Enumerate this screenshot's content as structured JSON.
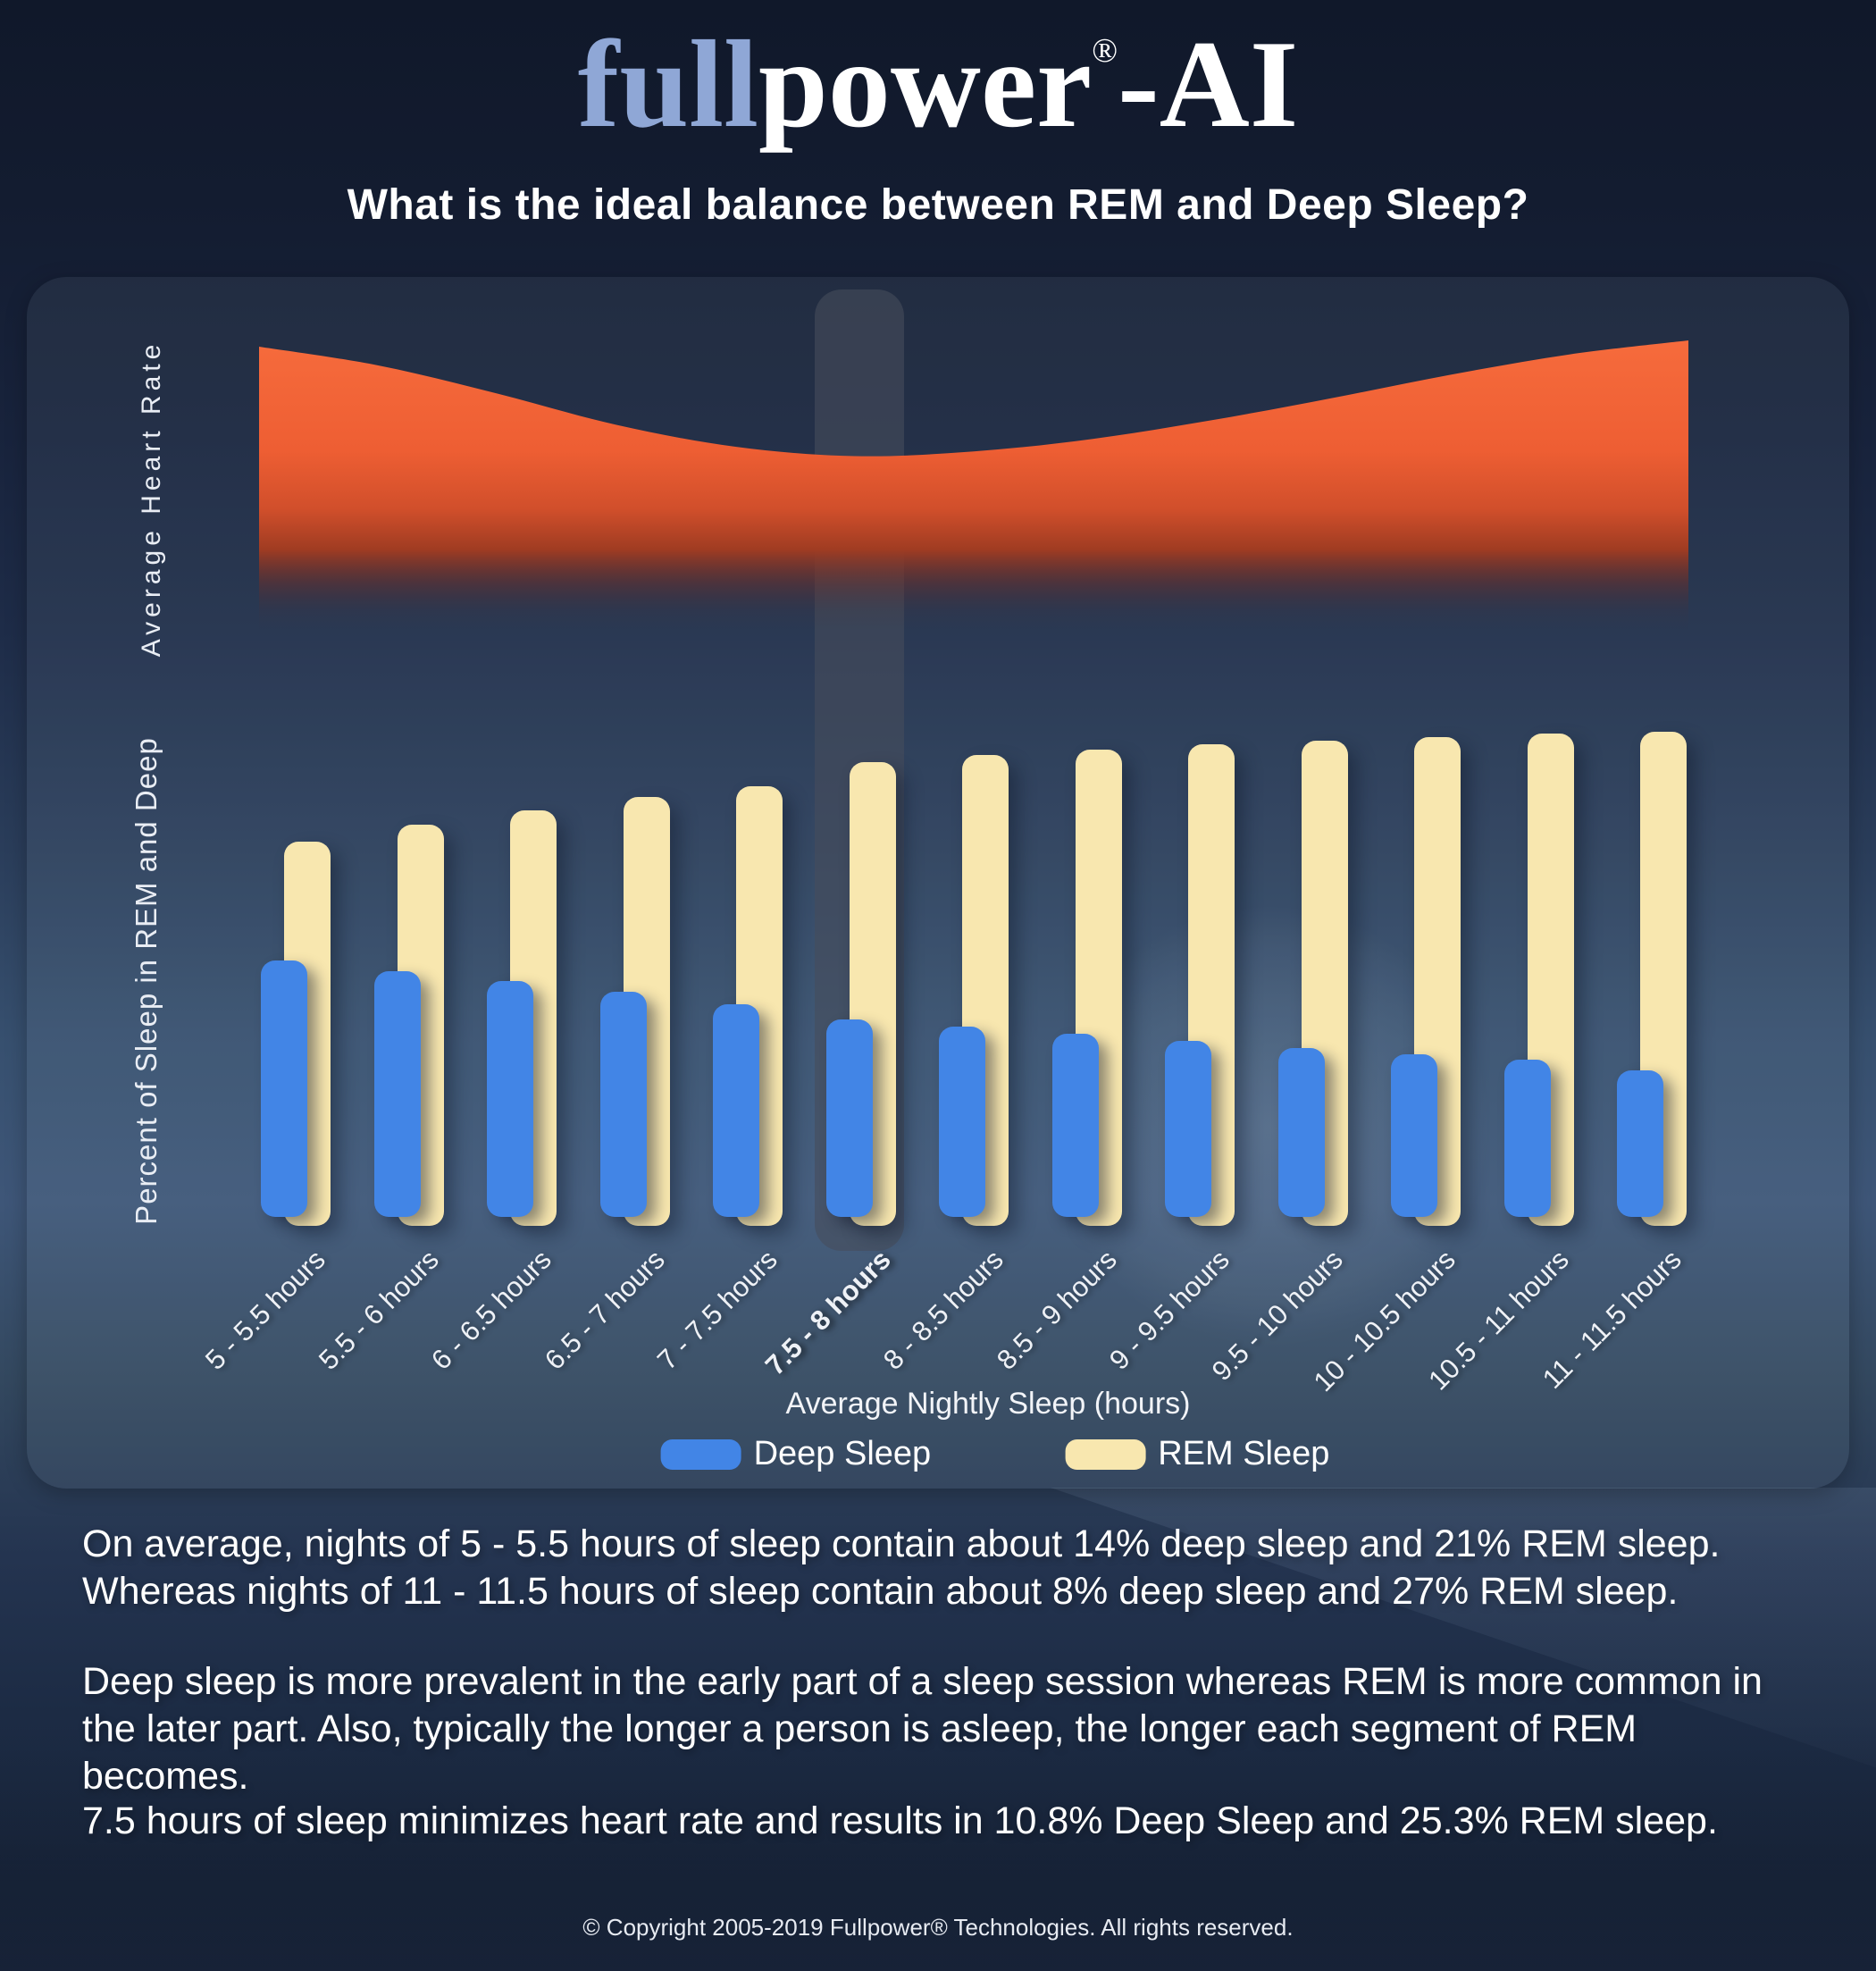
{
  "logo": {
    "blue": "full",
    "white": "power",
    "reg": "®",
    "suffix": "-AI"
  },
  "title": "What is the ideal balance between REM and Deep Sleep?",
  "legend": [
    {
      "label": "Deep Sleep",
      "color": "#4285e6",
      "swatch": "deep-sleep-swatch"
    },
    {
      "label": "REM Sleep",
      "color": "#f8e7af",
      "swatch": "rem-sleep-swatch"
    }
  ],
  "chart_data": [
    {
      "type": "area",
      "title": "Average Heart Rate",
      "ylabel": "Average Heart Rate",
      "xlabel": "",
      "x": [
        "5 - 5.5 hours",
        "5.5 - 6 hours",
        "6 - 6.5 hours",
        "6.5 - 7 hours",
        "7 - 7.5 hours",
        "7.5 - 8 hours",
        "8 - 8.5 hours",
        "8.5 - 9 hours",
        "9 - 9.5 hours",
        "9.5 - 10 hours",
        "10 - 10.5 hours",
        "10.5 - 11 hours",
        "11 - 11.5 hours"
      ],
      "values": [
        0.95,
        0.89,
        0.8,
        0.7,
        0.63,
        0.6,
        0.615,
        0.655,
        0.715,
        0.785,
        0.86,
        0.925,
        0.97
      ],
      "y_axis_numeric": false,
      "minimum_at": "7.5 - 8 hours",
      "fill_color_top": "#f5693a",
      "fill_color_bottom": "#7a2e1e"
    },
    {
      "type": "bar",
      "categories": [
        "5 - 5.5 hours",
        "5.5 - 6 hours",
        "6 - 6.5 hours",
        "6.5 - 7 hours",
        "7 - 7.5 hours",
        "7.5 - 8 hours",
        "8 - 8.5 hours",
        "8.5 - 9 hours",
        "9 - 9.5 hours",
        "9.5 - 10 hours",
        "10 - 10.5 hours",
        "10.5 - 11 hours",
        "11 - 11.5 hours"
      ],
      "series": [
        {
          "name": "Deep Sleep",
          "color": "#4285e6",
          "values": [
            14,
            13.4,
            12.9,
            12.3,
            11.6,
            10.8,
            10.4,
            10.0,
            9.6,
            9.2,
            8.9,
            8.6,
            8.0
          ]
        },
        {
          "name": "REM Sleep",
          "color": "#f8e7af",
          "values": [
            21,
            21.9,
            22.7,
            23.4,
            24.0,
            25.3,
            25.7,
            26.0,
            26.3,
            26.5,
            26.7,
            26.9,
            27.0
          ]
        }
      ],
      "unit": "%",
      "xlabel": "Average Nightly Sleep (hours)",
      "ylabel": "Percent of Sleep in REM and Deep",
      "ylim": [
        0,
        28
      ],
      "grid": false,
      "legend_position": "bottom",
      "highlighted_category": "7.5 - 8 hours"
    }
  ],
  "paragraphs": [
    "On average, nights of 5 - 5.5 hours of sleep contain about 14% deep sleep and 21% REM sleep. Whereas nights of 11 - 11.5 hours of sleep contain about 8% deep sleep and 27% REM sleep.",
    "Deep sleep is more prevalent in the early part of a sleep session whereas REM is more common in the later part. Also, typically the longer a person is asleep, the longer each segment of REM becomes.",
    "7.5 hours of sleep minimizes heart rate and results in 10.8% Deep Sleep and 25.3% REM sleep."
  ],
  "footer": "© Copyright 2005-2019 Fullpower® Technologies. All rights reserved.",
  "colors": {
    "deep_sleep": "#4285e6",
    "rem_sleep": "#f8e7af",
    "heart_area": "#f5693a",
    "logo_blue": "#8fa7d6",
    "background_top": "#131b2d",
    "background_mid": "#3e5678",
    "text": "#ffffff"
  }
}
